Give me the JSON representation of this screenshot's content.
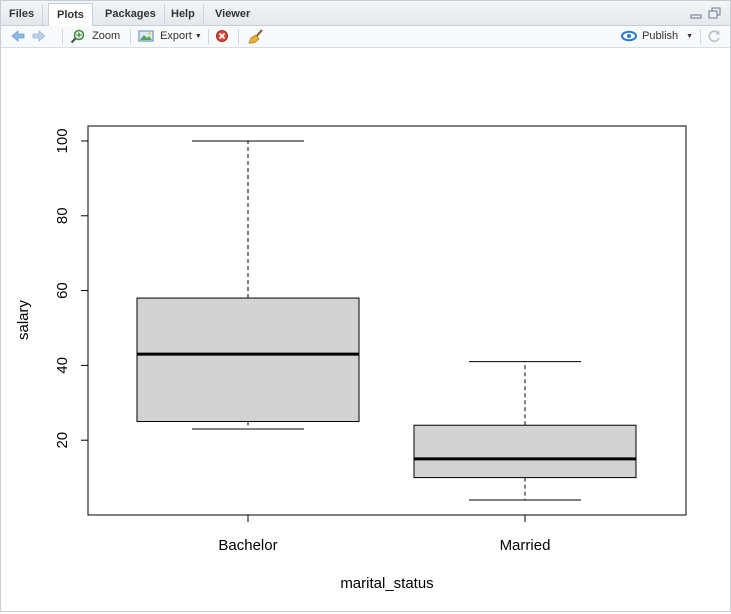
{
  "tabs": [
    {
      "label": "Files",
      "active": false
    },
    {
      "label": "Plots",
      "active": true
    },
    {
      "label": "Packages",
      "active": false
    },
    {
      "label": "Help",
      "active": false
    },
    {
      "label": "Viewer",
      "active": false
    }
  ],
  "toolbar": {
    "zoom_label": "Zoom",
    "export_label": "Export",
    "publish_label": "Publish"
  },
  "icons": {
    "back": "arrow-left-icon",
    "forward": "arrow-right-icon",
    "zoom": "magnifier-icon",
    "export": "image-export-icon",
    "remove": "remove-plot-icon",
    "clear": "broom-icon",
    "publish": "publish-icon",
    "refresh": "refresh-icon",
    "minimize": "minimize-pane-icon",
    "maximize": "maximize-pane-icon"
  },
  "colors": {
    "box_fill": "#d3d3d3",
    "accent": "#2a7bd4",
    "remove_red": "#c0392b"
  },
  "chart_data": {
    "type": "boxplot",
    "title": "",
    "xlabel": "marital_status",
    "ylabel": "salary",
    "ylim": [
      0,
      104
    ],
    "yticks": [
      20,
      40,
      60,
      80,
      100
    ],
    "categories": [
      "Bachelor",
      "Married"
    ],
    "boxes": [
      {
        "name": "Bachelor",
        "min": 23,
        "q1": 25,
        "median": 43,
        "q3": 58,
        "max": 100
      },
      {
        "name": "Married",
        "min": 4,
        "q1": 10,
        "median": 15,
        "q3": 24,
        "max": 41
      }
    ],
    "grid": false,
    "legend": "none"
  }
}
